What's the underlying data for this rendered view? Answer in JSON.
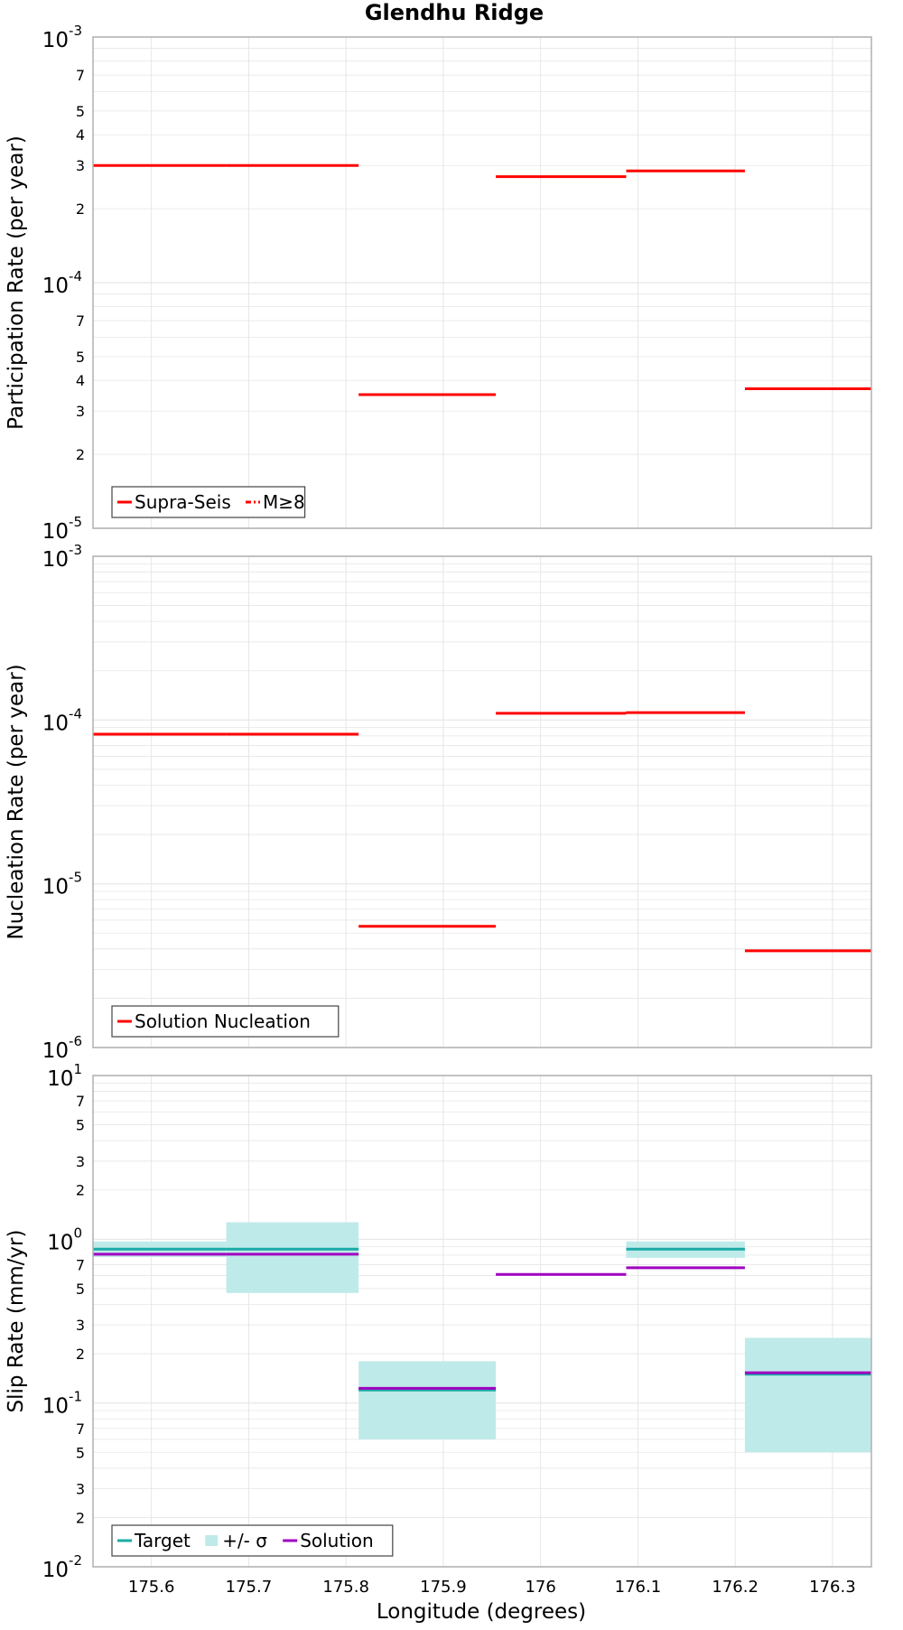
{
  "figure": {
    "title": "Glendhu Ridge",
    "xlabel": "Longitude (degrees)"
  },
  "colors": {
    "rate_line": "#ff0000",
    "target": "#1aaaa5",
    "sigma_fill": "#bfeaea",
    "solution": "#a000c0",
    "grid": "#e6e6e6",
    "frame": "#b0b0b0"
  },
  "chart_data": [
    {
      "type": "line",
      "ylabel": "Participation Rate (per year)",
      "yscale": "log",
      "ylim": [
        1e-05,
        0.001
      ],
      "xlim": [
        175.54,
        176.34
      ],
      "xticks": [
        "175.6",
        "175.7",
        "175.8",
        "175.9",
        "176",
        "176.1",
        "176.2",
        "176.3"
      ],
      "grid": true,
      "legend_position": "bottom-left",
      "legend": [
        "Supra-Seis",
        "M≥8"
      ],
      "series": [
        {
          "name": "Supra-Seis",
          "style": "step",
          "segments": [
            {
              "x": [
                175.54,
                175.677
              ],
              "y": 0.0003
            },
            {
              "x": [
                175.677,
                175.813
              ],
              "y": 0.0003
            },
            {
              "x": [
                175.813,
                175.954
              ],
              "y": 3.5e-05
            },
            {
              "x": [
                175.954,
                176.088
              ],
              "y": 0.00027
            },
            {
              "x": [
                176.088,
                176.21
              ],
              "y": 0.000285
            },
            {
              "x": [
                176.21,
                176.34
              ],
              "y": 3.7e-05
            }
          ]
        },
        {
          "name": "M≥8",
          "style": "dash-dot",
          "segments": []
        }
      ]
    },
    {
      "type": "line",
      "ylabel": "Nucleation Rate (per year)",
      "yscale": "log",
      "ylim": [
        1e-06,
        0.001
      ],
      "xlim": [
        175.54,
        176.34
      ],
      "xticks": [
        "175.6",
        "175.7",
        "175.8",
        "175.9",
        "176",
        "176.1",
        "176.2",
        "176.3"
      ],
      "grid": true,
      "legend_position": "bottom-left",
      "legend": [
        "Solution Nucleation"
      ],
      "series": [
        {
          "name": "Solution Nucleation",
          "style": "step",
          "segments": [
            {
              "x": [
                175.54,
                175.677
              ],
              "y": 8.2e-05
            },
            {
              "x": [
                175.677,
                175.813
              ],
              "y": 8.2e-05
            },
            {
              "x": [
                175.813,
                175.954
              ],
              "y": 5.5e-06
            },
            {
              "x": [
                175.954,
                176.088
              ],
              "y": 0.00011
            },
            {
              "x": [
                176.088,
                176.21
              ],
              "y": 0.000111
            },
            {
              "x": [
                176.21,
                176.34
              ],
              "y": 3.9e-06
            }
          ]
        }
      ]
    },
    {
      "type": "line",
      "ylabel": "Slip Rate (mm/yr)",
      "yscale": "log",
      "ylim": [
        0.01,
        10
      ],
      "xlim": [
        175.54,
        176.34
      ],
      "xticks": [
        "175.6",
        "175.7",
        "175.8",
        "175.9",
        "176",
        "176.1",
        "176.2",
        "176.3"
      ],
      "xlabel": "Longitude (degrees)",
      "grid": true,
      "legend_position": "bottom-left",
      "legend": [
        "Target",
        "+/- σ",
        "Solution"
      ],
      "series": [
        {
          "name": "+/- σ",
          "style": "band",
          "segments": [
            {
              "x": [
                175.54,
                175.677
              ],
              "low": 0.78,
              "high": 0.97
            },
            {
              "x": [
                175.677,
                175.813
              ],
              "low": 0.47,
              "high": 1.27
            },
            {
              "x": [
                175.813,
                175.954
              ],
              "low": 0.06,
              "high": 0.18
            },
            {
              "x": [
                176.088,
                176.21
              ],
              "low": 0.77,
              "high": 0.97
            },
            {
              "x": [
                176.21,
                176.34
              ],
              "low": 0.05,
              "high": 0.25
            }
          ]
        },
        {
          "name": "Target",
          "style": "step",
          "segments": [
            {
              "x": [
                175.54,
                175.677
              ],
              "y": 0.87
            },
            {
              "x": [
                175.677,
                175.813
              ],
              "y": 0.87
            },
            {
              "x": [
                175.813,
                175.954
              ],
              "y": 0.12
            },
            {
              "x": [
                176.088,
                176.21
              ],
              "y": 0.87
            },
            {
              "x": [
                176.21,
                176.34
              ],
              "y": 0.15
            }
          ]
        },
        {
          "name": "Solution",
          "style": "step",
          "segments": [
            {
              "x": [
                175.54,
                175.677
              ],
              "y": 0.81
            },
            {
              "x": [
                175.677,
                175.813
              ],
              "y": 0.81
            },
            {
              "x": [
                175.813,
                175.954
              ],
              "y": 0.123
            },
            {
              "x": [
                175.954,
                176.088
              ],
              "y": 0.61
            },
            {
              "x": [
                176.088,
                176.21
              ],
              "y": 0.67
            },
            {
              "x": [
                176.21,
                176.34
              ],
              "y": 0.153
            }
          ]
        }
      ]
    }
  ]
}
